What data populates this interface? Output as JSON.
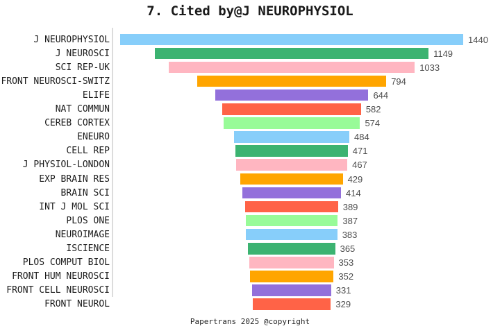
{
  "page": {
    "title": "7. Cited by@J NEUROPHYSIOL",
    "footer": "Papertrans 2025 @copyright"
  },
  "chart_data": {
    "type": "bar",
    "variant": "horizontal-centered-funnel",
    "title": "7. Cited by@J NEUROPHYSIOL",
    "xlabel": "",
    "ylabel": "",
    "grid": false,
    "legend": false,
    "value_labels_shown": true,
    "bar_alignment": "center",
    "xmax": 1440,
    "categories": [
      "J NEUROPHYSIOL",
      "J NEUROSCI",
      "SCI REP-UK",
      "FRONT NEUROSCI-SWITZ",
      "ELIFE",
      "NAT COMMUN",
      "CEREB CORTEX",
      "ENEURO",
      "CELL REP",
      "J PHYSIOL-LONDON",
      "EXP BRAIN RES",
      "BRAIN SCI",
      "INT J MOL SCI",
      "PLOS ONE",
      "NEUROIMAGE",
      "ISCIENCE",
      "PLOS COMPUT BIOL",
      "FRONT HUM NEUROSCI",
      "FRONT CELL NEUROSCI",
      "FRONT NEUROL"
    ],
    "values": [
      1440,
      1149,
      1033,
      794,
      644,
      582,
      574,
      484,
      471,
      467,
      429,
      414,
      389,
      387,
      383,
      365,
      353,
      352,
      331,
      329
    ],
    "palette": [
      "#87CEFA",
      "#3CB371",
      "#FFB6C1",
      "#FFA500",
      "#9370DB",
      "#FF6347",
      "#98FB98"
    ],
    "axis_line_color": "#dcdcdc",
    "value_label_color": "#4d4d4d",
    "category_label_color": "#1a1a1a",
    "background_color": "#ffffff"
  }
}
